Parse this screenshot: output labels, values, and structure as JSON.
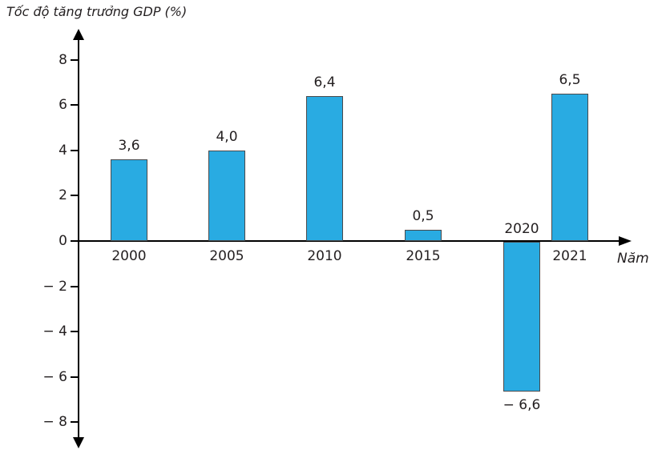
{
  "chart_data": {
    "type": "bar",
    "title": "Tốc độ tăng trưởng GDP (%)",
    "xlabel": "Năm",
    "ylabel": "Tốc độ tăng trưởng GDP (%)",
    "categories": [
      "2000",
      "2005",
      "2010",
      "2015",
      "2020",
      "2021"
    ],
    "values": [
      3.6,
      4.0,
      6.4,
      0.5,
      -6.6,
      6.5
    ],
    "value_labels": [
      "3,6",
      "4,0",
      "6,4",
      "0,5",
      "− 6,6",
      "6,5"
    ],
    "y_ticks": [
      8,
      6,
      4,
      2,
      0,
      -2,
      -4,
      -6,
      -8
    ],
    "y_tick_labels": [
      "8",
      "6",
      "4",
      "2",
      "0",
      "− 2",
      "− 4",
      "− 6",
      "− 8"
    ],
    "ylim": [
      -9,
      9
    ],
    "grid": false,
    "legend": null,
    "bar_color": "#29abe2",
    "bar_border_color": "#4a4a4c",
    "axis_color": "#000000",
    "text_color": "#231f20"
  }
}
